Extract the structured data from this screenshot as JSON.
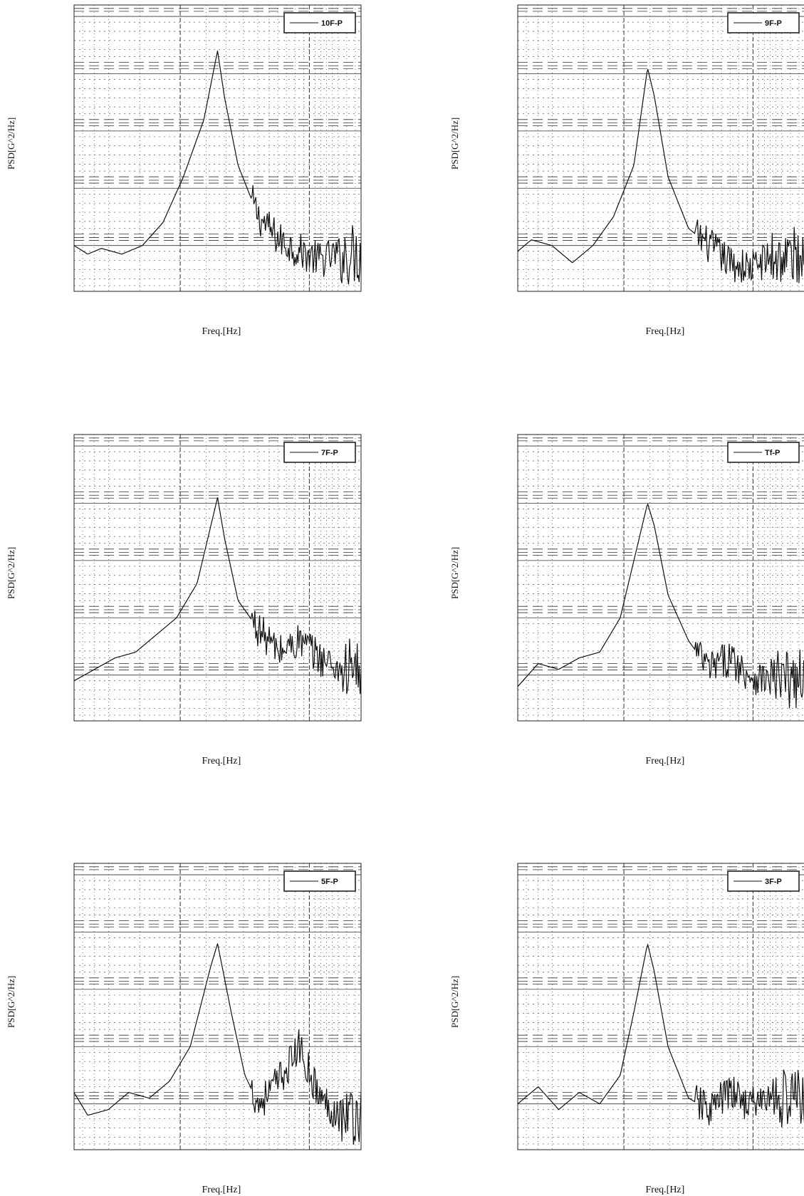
{
  "figure": {
    "panel_count": 6
  },
  "chart_data": [
    {
      "type": "line",
      "legend": "10F-P",
      "xlabel": "Freq.[Hz]",
      "ylabel": "PSD[G^2/Hz]",
      "legend_position": "top-right",
      "grid": true,
      "x_unit_note": "normalized frequency, no tick labels printed",
      "series": [
        {
          "name": "10F-P",
          "color": "#111111",
          "peak_x": 0.21,
          "points": [
            [
              0,
              -3.6
            ],
            [
              0.02,
              -3.75
            ],
            [
              0.04,
              -3.65
            ],
            [
              0.07,
              -3.75
            ],
            [
              0.1,
              -3.6
            ],
            [
              0.13,
              -3.2
            ],
            [
              0.16,
              -2.4
            ],
            [
              0.19,
              -1.4
            ],
            [
              0.21,
              -0.2
            ],
            [
              0.22,
              -1.0
            ],
            [
              0.24,
              -2.2
            ],
            [
              0.27,
              -3.1
            ],
            [
              0.3,
              -3.5
            ],
            [
              0.33,
              -3.7
            ],
            [
              0.36,
              -3.85
            ],
            [
              0.39,
              -3.75
            ]
          ]
        }
      ]
    },
    {
      "type": "line",
      "legend": "9F-P",
      "xlabel": "Freq.[Hz]",
      "ylabel": "PSD[G^2/Hz]",
      "legend_position": "top-right",
      "grid": true,
      "x_unit_note": "normalized frequency, no tick labels printed",
      "series": [
        {
          "name": "9F-P",
          "color": "#111111",
          "peak_x": 0.19,
          "points": [
            [
              0,
              -3.7
            ],
            [
              0.02,
              -3.5
            ],
            [
              0.05,
              -3.6
            ],
            [
              0.08,
              -3.9
            ],
            [
              0.11,
              -3.6
            ],
            [
              0.14,
              -3.1
            ],
            [
              0.17,
              -2.2
            ],
            [
              0.19,
              -0.5
            ],
            [
              0.2,
              -1.0
            ],
            [
              0.22,
              -2.4
            ],
            [
              0.25,
              -3.3
            ],
            [
              0.28,
              -3.6
            ],
            [
              0.31,
              -3.9
            ],
            [
              0.34,
              -4.0
            ],
            [
              0.37,
              -3.8
            ]
          ]
        }
      ]
    },
    {
      "type": "line",
      "legend": "7F-P",
      "xlabel": "Freq.[Hz]",
      "ylabel": "PSD[G^2/Hz]",
      "legend_position": "top-right",
      "grid": true,
      "x_unit_note": "normalized frequency, no tick labels printed",
      "series": [
        {
          "name": "7F-P",
          "color": "#111111",
          "peak_x": 0.21,
          "points": [
            [
              0,
              -3.7
            ],
            [
              0.03,
              -3.5
            ],
            [
              0.06,
              -3.3
            ],
            [
              0.09,
              -3.2
            ],
            [
              0.12,
              -2.9
            ],
            [
              0.15,
              -2.6
            ],
            [
              0.18,
              -2.0
            ],
            [
              0.21,
              -0.5
            ],
            [
              0.22,
              -1.2
            ],
            [
              0.24,
              -2.3
            ],
            [
              0.27,
              -2.8
            ],
            [
              0.3,
              -3.2
            ],
            [
              0.33,
              -3.0
            ],
            [
              0.36,
              -3.3
            ],
            [
              0.39,
              -3.5
            ]
          ]
        }
      ]
    },
    {
      "type": "line",
      "legend": "Tf-P",
      "xlabel": "Freq.[Hz]",
      "ylabel": "PSD[G^2/Hz]",
      "legend_position": "top-right",
      "grid": true,
      "x_unit_note": "normalized frequency, no tick labels printed",
      "series": [
        {
          "name": "Tf-P",
          "color": "#111111",
          "peak_x": 0.19,
          "points": [
            [
              0,
              -3.8
            ],
            [
              0.03,
              -3.4
            ],
            [
              0.06,
              -3.5
            ],
            [
              0.09,
              -3.3
            ],
            [
              0.12,
              -3.2
            ],
            [
              0.15,
              -2.6
            ],
            [
              0.17,
              -1.6
            ],
            [
              0.19,
              -0.6
            ],
            [
              0.2,
              -1.0
            ],
            [
              0.22,
              -2.2
            ],
            [
              0.25,
              -3.0
            ],
            [
              0.28,
              -3.5
            ],
            [
              0.31,
              -3.3
            ],
            [
              0.34,
              -3.6
            ],
            [
              0.37,
              -3.7
            ]
          ]
        }
      ]
    },
    {
      "type": "line",
      "legend": "5F-P",
      "xlabel": "Freq.[Hz]",
      "ylabel": "PSD[G^2/Hz]",
      "legend_position": "top-right",
      "grid": true,
      "x_unit_note": "normalized frequency, no tick labels printed",
      "series": [
        {
          "name": "5F-P",
          "color": "#111111",
          "peak_x": 0.21,
          "points": [
            [
              0,
              -3.4
            ],
            [
              0.02,
              -3.8
            ],
            [
              0.05,
              -3.7
            ],
            [
              0.08,
              -3.4
            ],
            [
              0.11,
              -3.5
            ],
            [
              0.14,
              -3.2
            ],
            [
              0.17,
              -2.6
            ],
            [
              0.2,
              -1.2
            ],
            [
              0.21,
              -0.8
            ],
            [
              0.23,
              -2.0
            ],
            [
              0.25,
              -3.1
            ],
            [
              0.27,
              -3.6
            ],
            [
              0.3,
              -3.2
            ],
            [
              0.33,
              -2.6
            ],
            [
              0.36,
              -3.5
            ],
            [
              0.39,
              -3.8
            ]
          ]
        }
      ]
    },
    {
      "type": "line",
      "legend": "3F-P",
      "xlabel": "Freq.[Hz]",
      "ylabel": "PSD[G^2/Hz]",
      "legend_position": "top-right",
      "grid": true,
      "x_unit_note": "normalized frequency, no tick labels printed",
      "series": [
        {
          "name": "3F-P",
          "color": "#111111",
          "peak_x": 0.19,
          "points": [
            [
              0,
              -3.6
            ],
            [
              0.03,
              -3.3
            ],
            [
              0.06,
              -3.7
            ],
            [
              0.09,
              -3.4
            ],
            [
              0.12,
              -3.6
            ],
            [
              0.15,
              -3.1
            ],
            [
              0.17,
              -2.0
            ],
            [
              0.19,
              -0.8
            ],
            [
              0.2,
              -1.3
            ],
            [
              0.22,
              -2.6
            ],
            [
              0.25,
              -3.5
            ],
            [
              0.28,
              -3.7
            ],
            [
              0.31,
              -3.4
            ],
            [
              0.34,
              -3.6
            ],
            [
              0.37,
              -3.5
            ]
          ]
        }
      ]
    }
  ]
}
